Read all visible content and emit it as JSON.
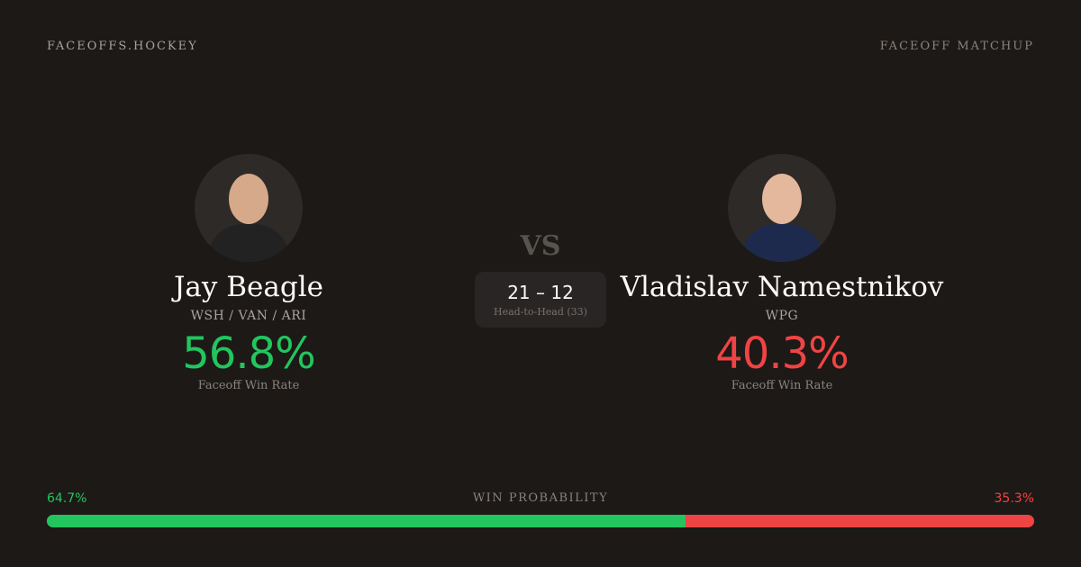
{
  "header": {
    "brand": "FACEOFFS.HOCKEY",
    "page_type": "FACEOFF MATCHUP"
  },
  "players": [
    {
      "name": "Jay Beagle",
      "teams": "WSH / VAN / ARI",
      "win_rate": "56.8%",
      "win_rate_label": "Faceoff Win Rate"
    },
    {
      "name": "Vladislav Namestnikov",
      "teams": "WPG",
      "win_rate": "40.3%",
      "win_rate_label": "Faceoff Win Rate"
    }
  ],
  "matchup": {
    "vs": "VS",
    "score": "21 – 12",
    "label": "Head-to-Head (33)"
  },
  "probability": {
    "label": "WIN PROBABILITY",
    "left": "64.7%",
    "right": "35.3%",
    "left_value": 64.7
  },
  "colors": {
    "background": "#1c1917",
    "win": "#22c55e",
    "loss": "#ef4444"
  }
}
